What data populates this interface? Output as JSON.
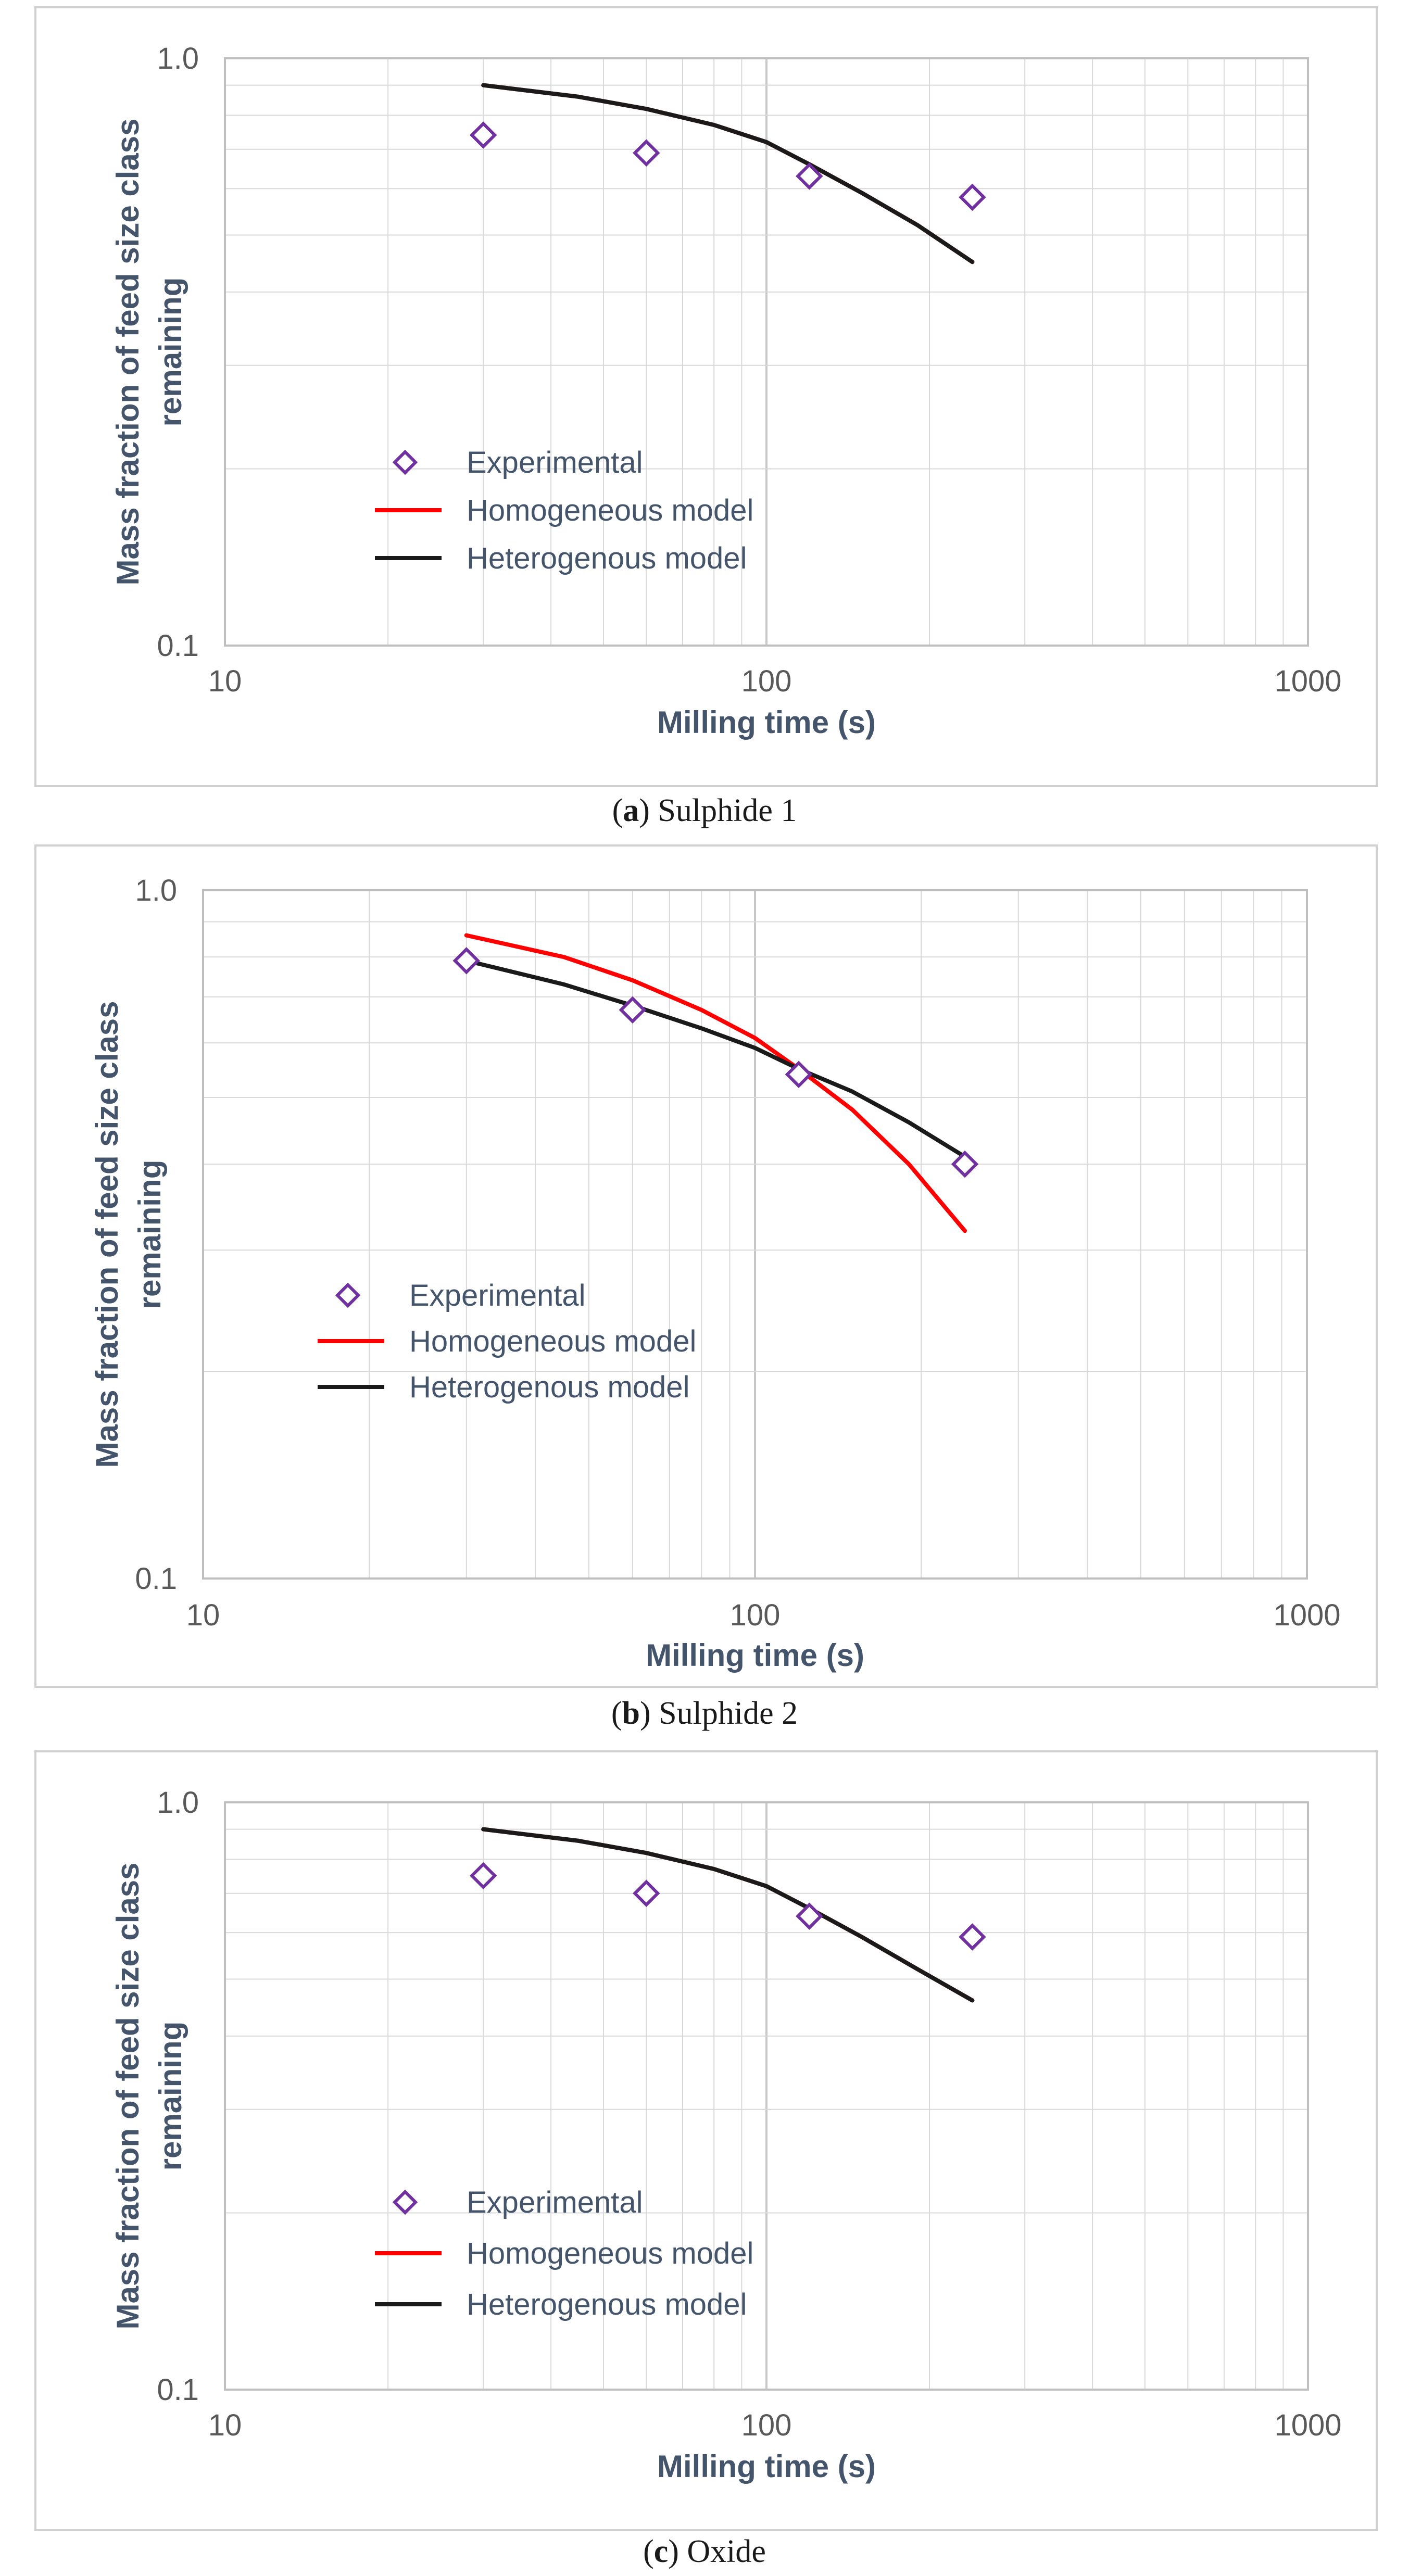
{
  "chart_data": [
    {
      "type": "line",
      "panel_label": "a",
      "caption": "Sulphide 1",
      "xlabel": "Milling time (s)",
      "ylabel": "Mass fraction of feed size class remaining",
      "ylabel_lines": [
        "Mass fraction of feed size class",
        "remaining"
      ],
      "x_scale": "log",
      "y_scale": "log",
      "xlim": [
        10,
        1000
      ],
      "ylim": [
        0.1,
        1.0
      ],
      "x_ticks": [
        10,
        100,
        1000
      ],
      "x_tick_labels": [
        "10",
        "100",
        "1000"
      ],
      "y_ticks": [
        0.1,
        1.0
      ],
      "y_tick_labels": [
        "0.1",
        "1.0"
      ],
      "grid": true,
      "legend": [
        "Experimental",
        "Homogeneous model",
        "Heterogenous model"
      ],
      "series": [
        {
          "name": "Experimental",
          "kind": "marker",
          "x": [
            30,
            60,
            120,
            240
          ],
          "y": [
            0.74,
            0.69,
            0.63,
            0.58
          ]
        },
        {
          "name": "Homogeneous model",
          "kind": "line",
          "x": [
            30,
            45,
            60,
            80,
            100,
            120,
            150,
            190,
            240
          ],
          "y": [
            0.9,
            0.86,
            0.82,
            0.77,
            0.72,
            0.66,
            0.59,
            0.52,
            0.45
          ]
        },
        {
          "name": "Heterogenous model",
          "kind": "line",
          "x": [
            30,
            45,
            60,
            80,
            100,
            120,
            150,
            190,
            240
          ],
          "y": [
            0.9,
            0.86,
            0.82,
            0.77,
            0.72,
            0.66,
            0.59,
            0.52,
            0.45
          ]
        }
      ]
    },
    {
      "type": "line",
      "panel_label": "b",
      "caption": "Sulphide 2",
      "xlabel": "Milling time (s)",
      "ylabel": "Mass fraction of feed size class remaining",
      "ylabel_lines": [
        "Mass fraction of feed size class",
        "remaining"
      ],
      "x_scale": "log",
      "y_scale": "log",
      "xlim": [
        10,
        1000
      ],
      "ylim": [
        0.1,
        1.0
      ],
      "x_ticks": [
        10,
        100,
        1000
      ],
      "x_tick_labels": [
        "10",
        "100",
        "1000"
      ],
      "y_ticks": [
        0.1,
        1.0
      ],
      "y_tick_labels": [
        "0.1",
        "1.0"
      ],
      "grid": true,
      "legend": [
        "Experimental",
        "Homogeneous model",
        "Heterogenous model"
      ],
      "series": [
        {
          "name": "Experimental",
          "kind": "marker",
          "x": [
            30,
            60,
            120,
            240
          ],
          "y": [
            0.79,
            0.67,
            0.54,
            0.4
          ]
        },
        {
          "name": "Homogeneous model",
          "kind": "line",
          "x": [
            30,
            45,
            60,
            80,
            100,
            120,
            150,
            190,
            240
          ],
          "y": [
            0.86,
            0.8,
            0.74,
            0.67,
            0.61,
            0.55,
            0.48,
            0.4,
            0.32
          ]
        },
        {
          "name": "Heterogenous model",
          "kind": "line",
          "x": [
            30,
            45,
            60,
            80,
            100,
            120,
            150,
            190,
            240
          ],
          "y": [
            0.79,
            0.73,
            0.68,
            0.63,
            0.59,
            0.55,
            0.51,
            0.46,
            0.41
          ]
        }
      ]
    },
    {
      "type": "line",
      "panel_label": "c",
      "caption": "Oxide",
      "xlabel": "Milling time (s)",
      "ylabel": "Mass fraction of feed size class remaining",
      "ylabel_lines": [
        "Mass fraction of feed size class",
        "remaining"
      ],
      "x_scale": "log",
      "y_scale": "log",
      "xlim": [
        10,
        1000
      ],
      "ylim": [
        0.1,
        1.0
      ],
      "x_ticks": [
        10,
        100,
        1000
      ],
      "x_tick_labels": [
        "10",
        "100",
        "1000"
      ],
      "y_ticks": [
        0.1,
        1.0
      ],
      "y_tick_labels": [
        "0.1",
        "1.0"
      ],
      "grid": true,
      "legend": [
        "Experimental",
        "Homogeneous model",
        "Heterogenous model"
      ],
      "series": [
        {
          "name": "Experimental",
          "kind": "marker",
          "x": [
            30,
            60,
            120,
            240
          ],
          "y": [
            0.75,
            0.7,
            0.64,
            0.59
          ]
        },
        {
          "name": "Homogeneous model",
          "kind": "line",
          "x": [
            30,
            45,
            60,
            80,
            100,
            120,
            150,
            190,
            240
          ],
          "y": [
            0.9,
            0.86,
            0.82,
            0.77,
            0.72,
            0.66,
            0.59,
            0.52,
            0.46
          ]
        },
        {
          "name": "Heterogenous model",
          "kind": "line",
          "x": [
            30,
            45,
            60,
            80,
            100,
            120,
            150,
            190,
            240
          ],
          "y": [
            0.9,
            0.86,
            0.82,
            0.77,
            0.72,
            0.66,
            0.59,
            0.52,
            0.46
          ]
        }
      ]
    }
  ],
  "colors": {
    "experimental": "#7030a0",
    "homogeneous": "#ff0000",
    "heterogenous": "#1a1a1a",
    "grid": "#d9d9d9",
    "axis_title": "#44546a",
    "tick_label": "#595959"
  }
}
